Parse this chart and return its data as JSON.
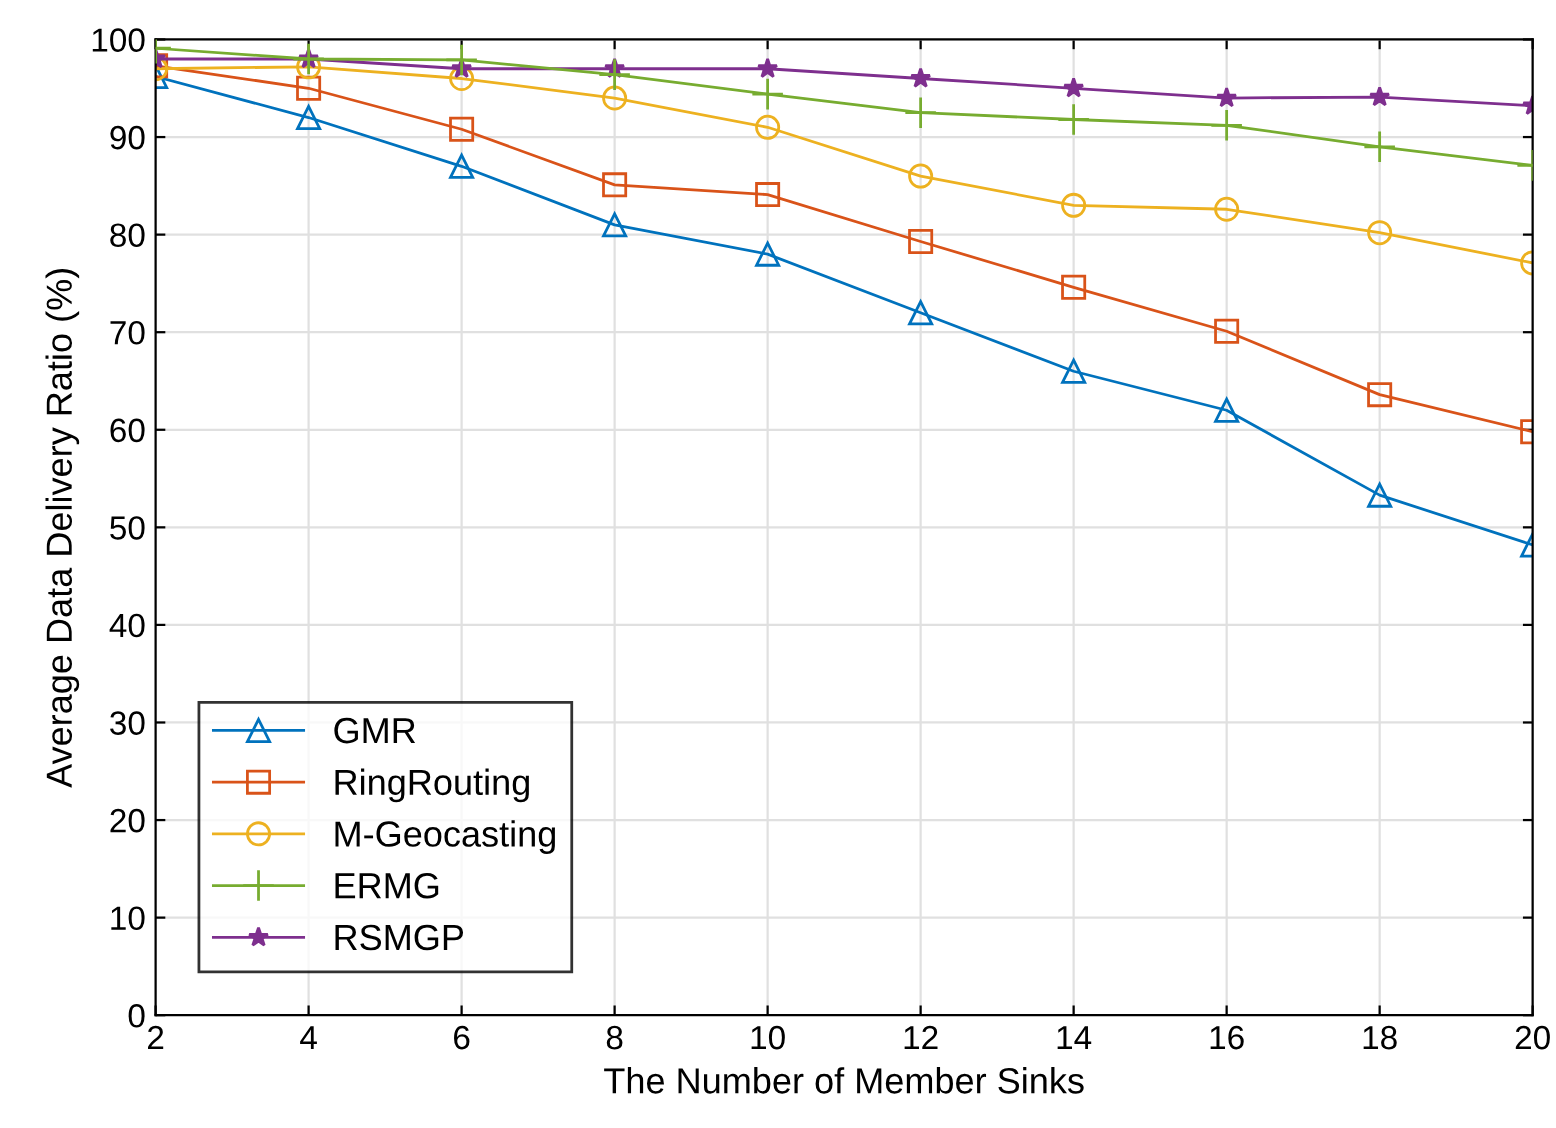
{
  "chart_data": {
    "type": "line",
    "xlabel": "The Number of Member Sinks",
    "ylabel": "Average Data Delivery Ratio (%)",
    "x": [
      2,
      4,
      6,
      8,
      10,
      12,
      14,
      16,
      18,
      20
    ],
    "xlim": [
      2,
      20
    ],
    "xticks": [
      2,
      4,
      6,
      8,
      10,
      12,
      14,
      16,
      18,
      20
    ],
    "ylim": [
      0,
      100
    ],
    "yticks": [
      0,
      10,
      20,
      30,
      40,
      50,
      60,
      70,
      80,
      90,
      100
    ],
    "grid": true,
    "legend": "bottom left",
    "line_style": "solid",
    "series": [
      {
        "name": "GMR",
        "color": "#0072bd",
        "marker": "triangle",
        "values": [
          96.2,
          92,
          87,
          81,
          78,
          72,
          66,
          62,
          53.3,
          48.2
        ]
      },
      {
        "name": "RingRouting",
        "color": "#d95319",
        "marker": "square",
        "values": [
          97.3,
          95,
          90.8,
          85.1,
          84.1,
          79.3,
          74.6,
          70.1,
          63.6,
          59.8
        ]
      },
      {
        "name": "M-Geocasting",
        "color": "#edb120",
        "marker": "circle",
        "values": [
          97,
          97.2,
          96,
          94,
          91,
          86,
          83,
          82.6,
          80.2,
          77.1
        ]
      },
      {
        "name": "ERMG",
        "color": "#77ac30",
        "marker": "cross",
        "values": [
          99.1,
          98,
          97.9,
          96.4,
          94.4,
          92.5,
          91.8,
          91.2,
          89,
          87.1
        ]
      },
      {
        "name": "RSMGP",
        "color": "#7e2f8e",
        "marker": "star",
        "values": [
          98,
          98,
          97,
          97,
          97,
          96,
          95,
          94,
          94.1,
          93.2
        ]
      }
    ]
  }
}
